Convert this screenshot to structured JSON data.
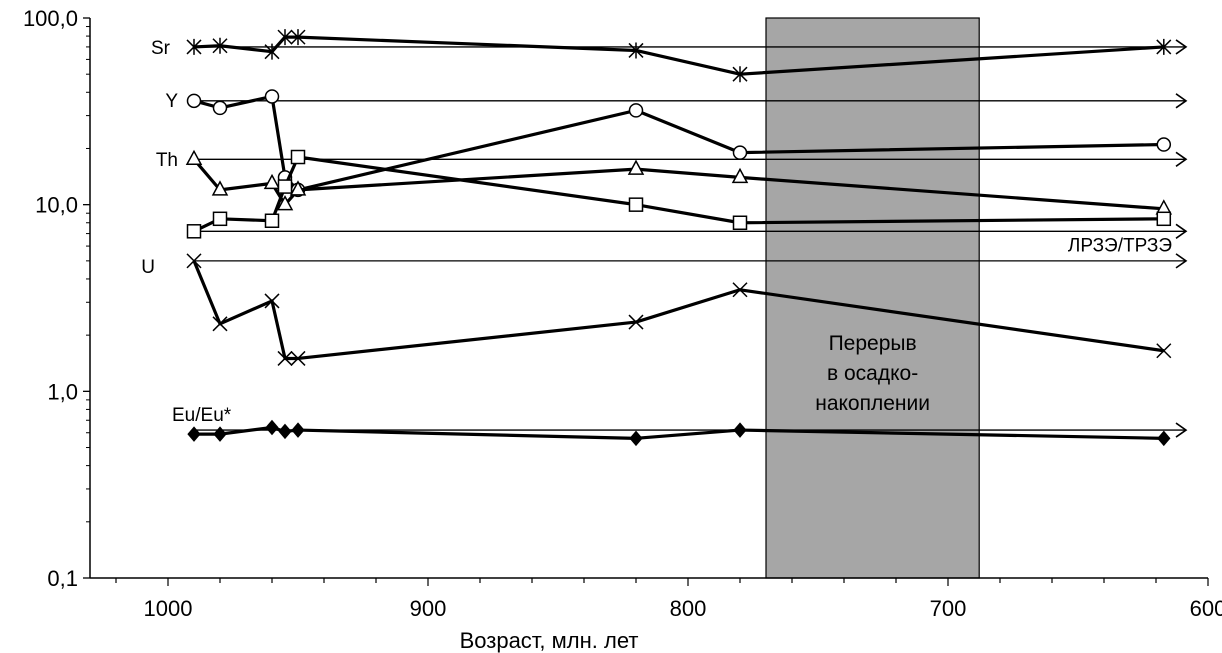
{
  "chart_data": {
    "type": "line",
    "xlabel": "Возраст, млн. лет",
    "ylabel": "",
    "x_reversed": true,
    "xlim": [
      1030,
      600
    ],
    "ylim": [
      0.1,
      100
    ],
    "y_scale": "log",
    "x_ticks": [
      "1000",
      "900",
      "800",
      "700",
      "600"
    ],
    "y_ticks": [
      "0,1",
      "1,0",
      "10,0",
      "100,0"
    ],
    "grid": false,
    "hiatus": {
      "from": 770,
      "to": 688,
      "label_lines": [
        "Перерыв",
        "в осадко-",
        "накоплении"
      ]
    },
    "reference_lines": [
      {
        "series": "Sr",
        "value": 70
      },
      {
        "series": "Y",
        "value": 36
      },
      {
        "series": "Th",
        "value": 17.5
      },
      {
        "series": "ЛРЗЭ/ТРЗЭ",
        "value": 7.2,
        "label": "ЛРЗЭ/ТРЗЭ"
      },
      {
        "series": "U",
        "value": 5
      },
      {
        "series": "Eu/Eu*",
        "value": 0.62
      }
    ],
    "series": [
      {
        "name": "Sr",
        "marker": "star",
        "x": [
          990,
          980,
          960,
          955,
          950,
          820,
          780,
          617
        ],
        "y": [
          70,
          71,
          66,
          79,
          79,
          67,
          50,
          70
        ]
      },
      {
        "name": "Y",
        "marker": "circle",
        "x": [
          990,
          980,
          960,
          955,
          950,
          820,
          780,
          617
        ],
        "y": [
          36,
          33,
          38,
          14,
          12,
          32,
          19,
          21
        ]
      },
      {
        "name": "Th",
        "marker": "triangle",
        "x": [
          990,
          980,
          960,
          955,
          950,
          820,
          780,
          617
        ],
        "y": [
          17.5,
          12,
          13,
          10,
          12,
          15.5,
          14,
          9.5
        ]
      },
      {
        "name": "ЛРЗЭ/ТРЗЭ",
        "marker": "square",
        "x": [
          990,
          980,
          960,
          955,
          950,
          820,
          780,
          617
        ],
        "y": [
          7.2,
          8.4,
          8.2,
          12.5,
          18,
          10,
          8,
          8.4
        ]
      },
      {
        "name": "U",
        "marker": "x",
        "x": [
          990,
          980,
          960,
          955,
          950,
          820,
          780,
          617
        ],
        "y": [
          5,
          2.3,
          3.05,
          1.5,
          1.5,
          2.35,
          3.5,
          1.65
        ]
      },
      {
        "name": "Eu/Eu*",
        "marker": "diamond",
        "x": [
          990,
          980,
          960,
          955,
          950,
          820,
          780,
          617
        ],
        "y": [
          0.59,
          0.59,
          0.64,
          0.61,
          0.62,
          0.56,
          0.62,
          0.56
        ]
      }
    ]
  }
}
